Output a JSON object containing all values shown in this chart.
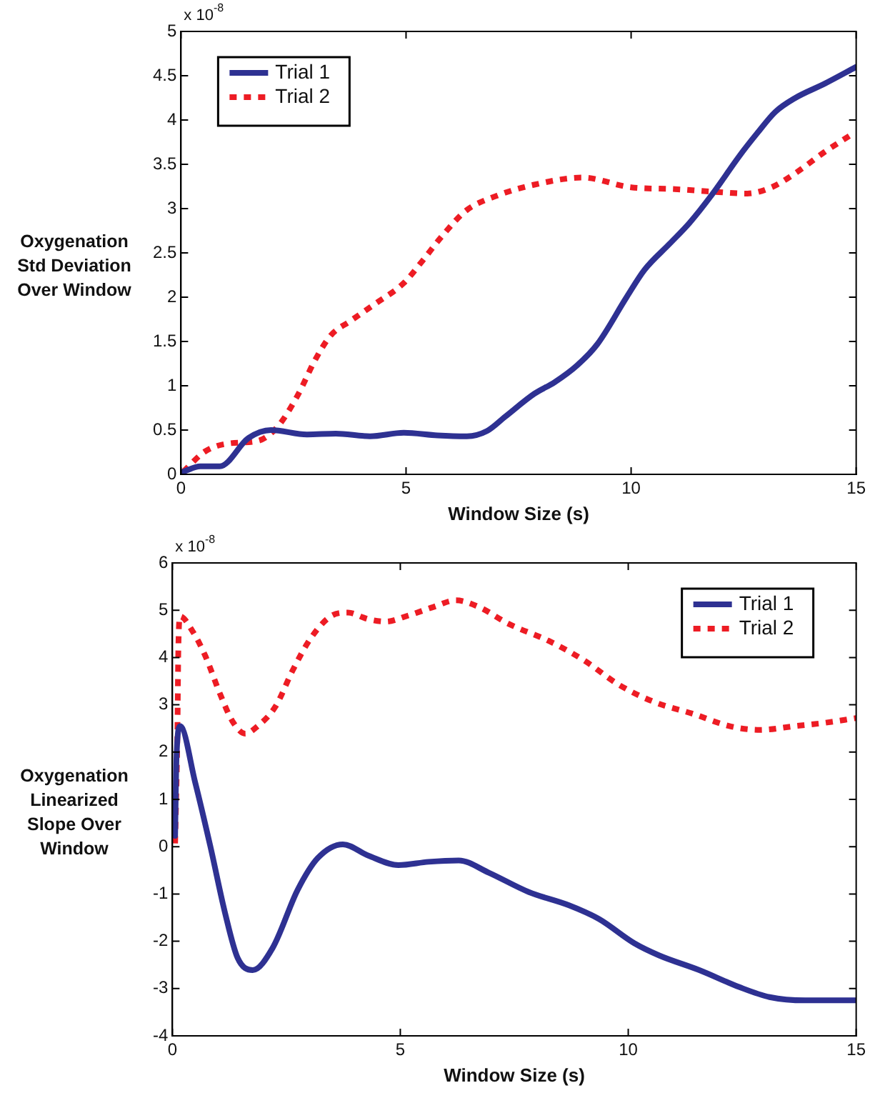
{
  "chart_data": [
    {
      "type": "line",
      "xlabel": "Window Size (s)",
      "ylabel": "Oxygenation Std Deviation Over Window",
      "annotations": [
        "x 10$^{-8}$"
      ],
      "xlim": [
        0,
        15
      ],
      "xticks": [
        0,
        5,
        10,
        15
      ],
      "ylim": [
        0,
        5
      ],
      "yticks": [
        0,
        0.5,
        1,
        1.5,
        2,
        2.5,
        3,
        3.5,
        4,
        4.5,
        5
      ],
      "grid": false,
      "legend": "top left",
      "marker": "none",
      "series": [
        {
          "name": "Trial 1",
          "color": "#2e3192",
          "line_style": "solid",
          "x": [
            0.05,
            0.43,
            0.86,
            1.5,
            2.0,
            2.8,
            3.44,
            4.2,
            4.95,
            5.7,
            6.35,
            6.8,
            7.2,
            7.85,
            8.3,
            8.8,
            9.25,
            9.9,
            10.3,
            10.85,
            11.3,
            11.8,
            12.4,
            12.8,
            13.2,
            13.65,
            14.3,
            15
          ],
          "values": [
            0.03,
            0.09,
            0.09,
            0.41,
            0.5,
            0.45,
            0.46,
            0.43,
            0.47,
            0.44,
            0.43,
            0.49,
            0.65,
            0.91,
            1.04,
            1.23,
            1.47,
            2.0,
            2.31,
            2.6,
            2.84,
            3.16,
            3.59,
            3.85,
            4.09,
            4.25,
            4.41,
            4.6
          ]
        },
        {
          "name": "Trial 2",
          "color": "#ed1c24",
          "line_style": "dotted",
          "x": [
            0.05,
            0.54,
            1.08,
            1.72,
            2.15,
            2.58,
            3.0,
            3.33,
            3.76,
            4.3,
            4.95,
            5.38,
            5.8,
            6.34,
            6.99,
            7.85,
            8.92,
            10.0,
            10.97,
            11.83,
            12.58,
            13.12,
            13.65,
            14.3,
            14.94
          ],
          "values": [
            0.03,
            0.26,
            0.35,
            0.38,
            0.54,
            0.88,
            1.31,
            1.57,
            1.73,
            1.92,
            2.16,
            2.42,
            2.69,
            2.98,
            3.14,
            3.27,
            3.35,
            3.24,
            3.22,
            3.19,
            3.17,
            3.24,
            3.4,
            3.64,
            3.85
          ]
        }
      ]
    },
    {
      "type": "line",
      "xlabel": "Window Size (s)",
      "ylabel": "Oxygenation Linearized Slope Over Window",
      "annotations": [
        "x 10$^{-8}$"
      ],
      "xlim": [
        0,
        15
      ],
      "xticks": [
        0,
        5,
        10,
        15
      ],
      "ylim": [
        -4,
        6
      ],
      "yticks": [
        -4,
        -3,
        -2,
        -1,
        0,
        1,
        2,
        3,
        4,
        5,
        6
      ],
      "grid": false,
      "legend": "top right",
      "marker": "none",
      "series": [
        {
          "name": "Trial 1",
          "color": "#2e3192",
          "line_style": "solid",
          "x": [
            0.06,
            0.09,
            0.17,
            0.5,
            0.83,
            1.16,
            1.43,
            1.76,
            2.2,
            2.75,
            3.19,
            3.74,
            4.3,
            4.96,
            5.62,
            6.28,
            6.94,
            7.82,
            8.7,
            9.36,
            10.13,
            10.68,
            11.56,
            12.44,
            13.1,
            13.88,
            15
          ],
          "values": [
            0.23,
            1.88,
            2.55,
            1.36,
            0.02,
            -1.42,
            -2.35,
            -2.61,
            -2.14,
            -0.91,
            -0.24,
            0.05,
            -0.19,
            -0.39,
            -0.32,
            -0.29,
            -0.55,
            -0.96,
            -1.24,
            -1.53,
            -2.04,
            -2.3,
            -2.61,
            -2.97,
            -3.18,
            -3.25,
            -3.25
          ]
        },
        {
          "name": "Trial 2",
          "color": "#ed1c24",
          "line_style": "dotted",
          "x": [
            0.06,
            0.11,
            0.13,
            0.17,
            0.44,
            0.72,
            1.05,
            1.32,
            1.6,
            1.87,
            2.26,
            2.64,
            3.03,
            3.47,
            3.85,
            4.3,
            4.68,
            5.18,
            5.73,
            6.22,
            6.72,
            7.38,
            8.26,
            9.03,
            9.8,
            10.57,
            11.45,
            12.22,
            12.89,
            13.66,
            14.32,
            15
          ],
          "values": [
            0.07,
            2.39,
            4.14,
            4.87,
            4.56,
            4.04,
            3.22,
            2.65,
            2.39,
            2.55,
            2.96,
            3.73,
            4.4,
            4.87,
            4.95,
            4.81,
            4.76,
            4.89,
            5.07,
            5.21,
            5.07,
            4.71,
            4.35,
            3.94,
            3.42,
            3.06,
            2.8,
            2.55,
            2.47,
            2.55,
            2.62,
            2.72
          ]
        }
      ]
    }
  ]
}
